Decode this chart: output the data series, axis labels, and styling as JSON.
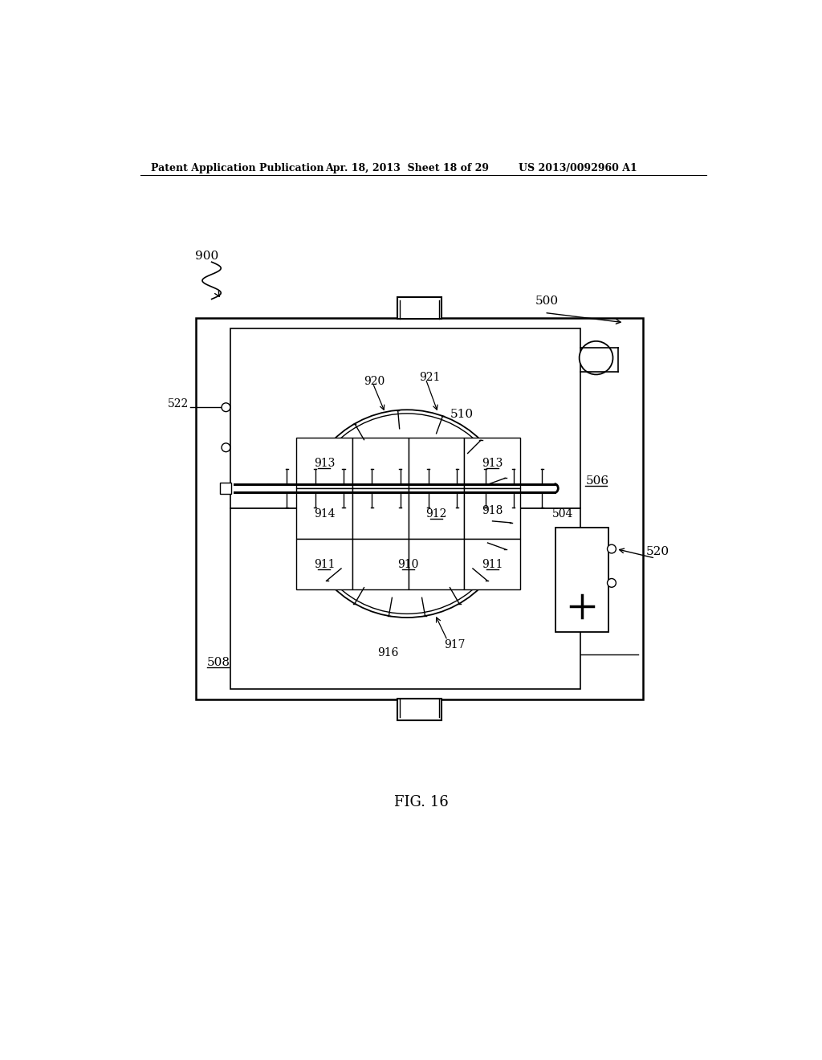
{
  "bg_color": "#ffffff",
  "header_text": "Patent Application Publication",
  "header_date": "Apr. 18, 2013  Sheet 18 of 29",
  "header_num": "US 2013/0092960 A1",
  "fig_label": "FIG. 16",
  "labels": {
    "900": "900",
    "500": "500",
    "510": "510",
    "506": "506",
    "508": "508",
    "504": "504",
    "520": "520",
    "522": "522",
    "910": "910",
    "911": "911",
    "912": "912",
    "913": "913",
    "914": "914",
    "916": "916",
    "917": "917",
    "918": "918",
    "920": "920",
    "921": "921"
  }
}
